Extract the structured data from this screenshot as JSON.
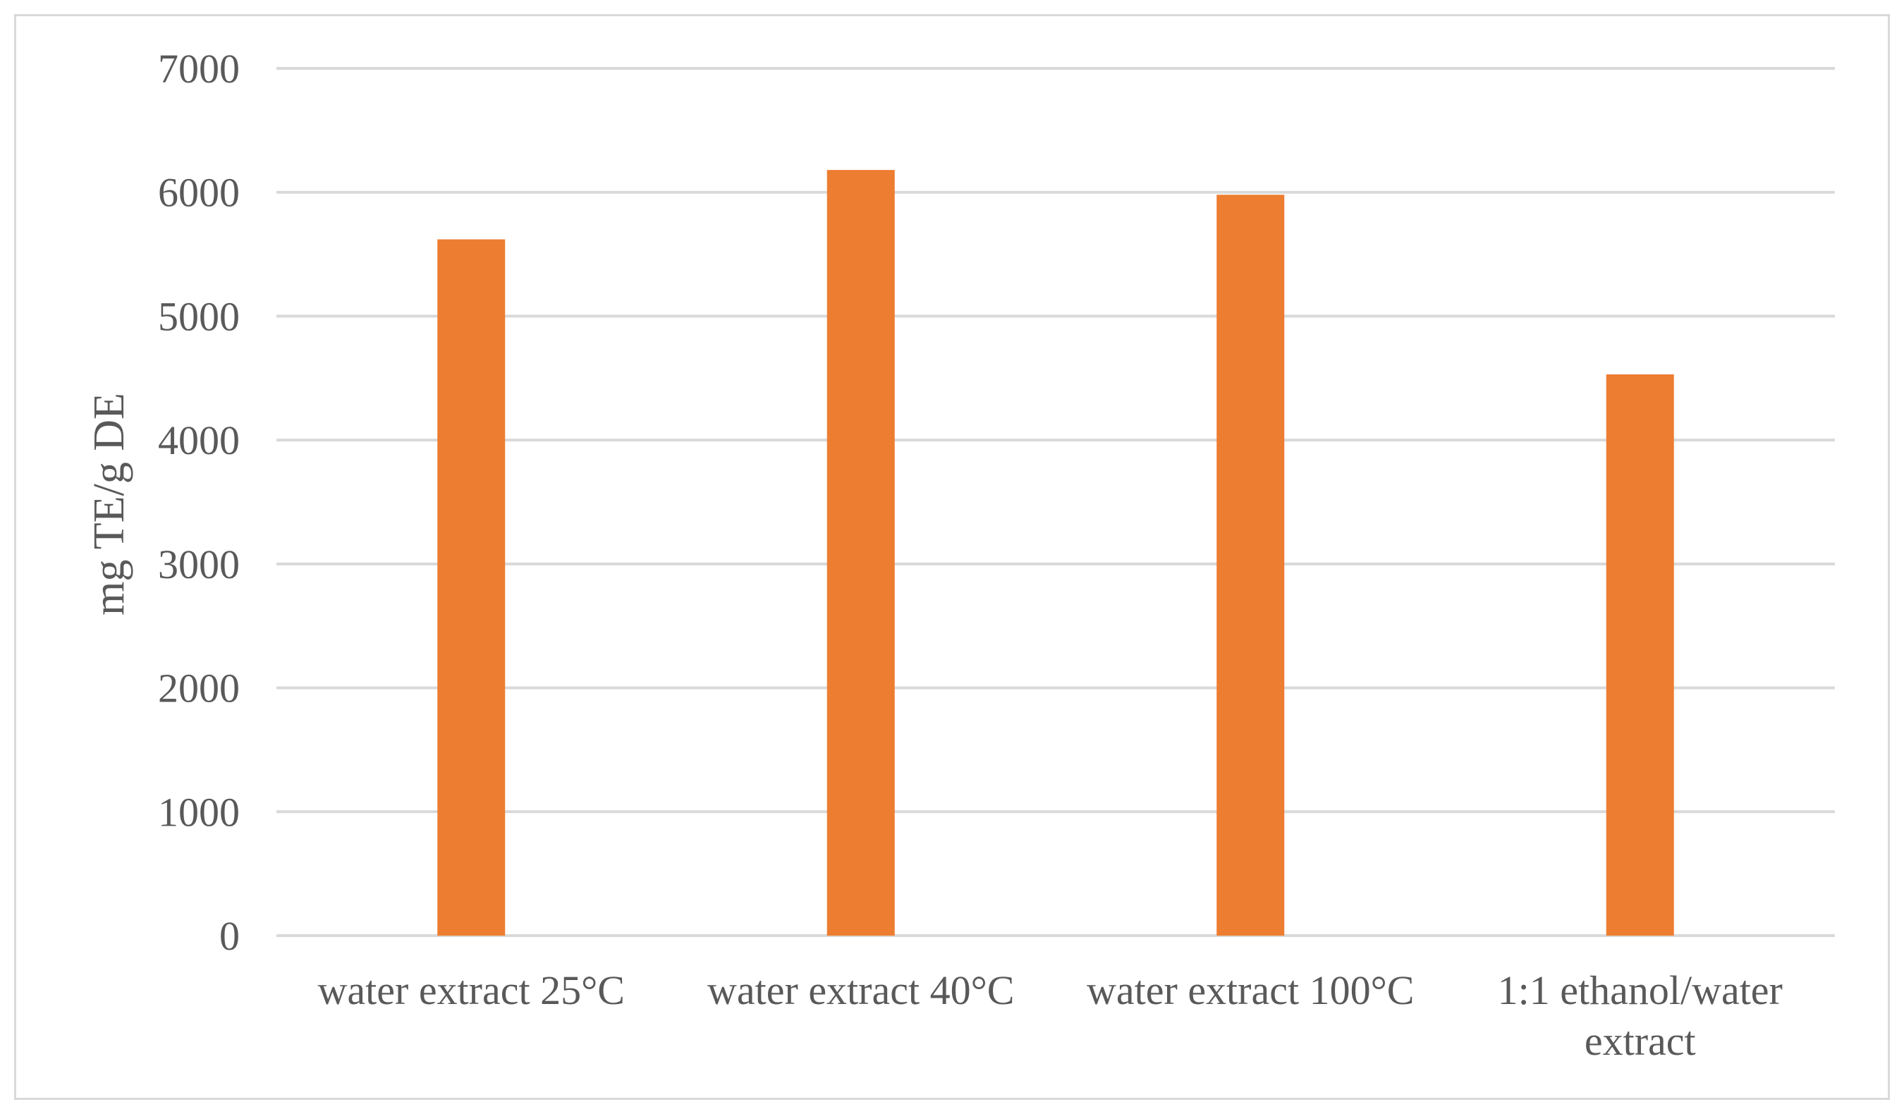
{
  "chart_data": {
    "type": "bar",
    "categories": [
      [
        "water extract 25°C"
      ],
      [
        "water extract 40°C"
      ],
      [
        "water extract 100°C"
      ],
      [
        "1:1 ethanol/water",
        "extract"
      ]
    ],
    "values": [
      5620,
      6180,
      5980,
      4530
    ],
    "ylabel": "mg TE/g DE",
    "xlabel": "",
    "title": "",
    "ylim": [
      0,
      7000
    ],
    "yticks": [
      0,
      1000,
      2000,
      3000,
      4000,
      5000,
      6000,
      7000
    ],
    "bar_color": "#ed7d31",
    "grid": true,
    "legend": "none"
  }
}
